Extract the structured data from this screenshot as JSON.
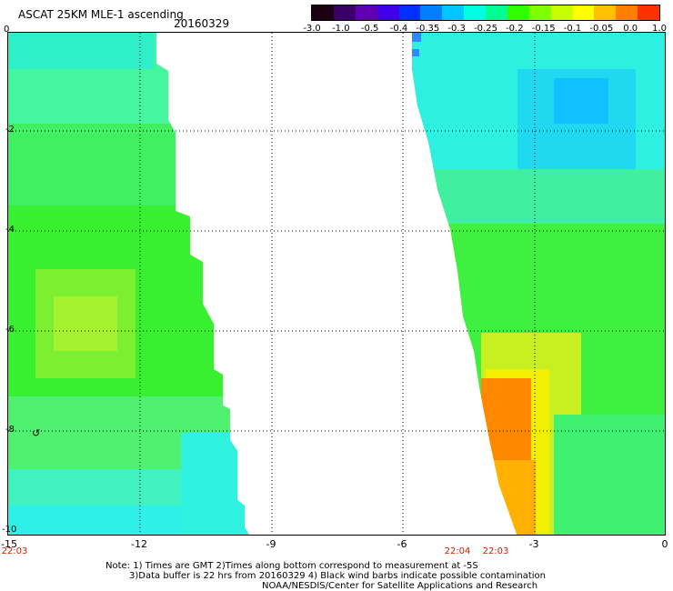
{
  "header": {
    "title": "ASCAT 25KM MLE-1 ascending",
    "date": "20160329"
  },
  "colorbar": {
    "labels": [
      "-3.0",
      "-1.0",
      "-0.5",
      "-0.4",
      "-0.35",
      "-0.3",
      "-0.25",
      "-0.2",
      "-0.15",
      "-0.1",
      "-0.05",
      "0.0",
      "1.0"
    ],
    "colors": [
      "#1a0010",
      "#3a0068",
      "#6000b0",
      "#4000e8",
      "#0030ff",
      "#0080ff",
      "#00c8ff",
      "#00ffe0",
      "#00ff90",
      "#30ff00",
      "#80ff00",
      "#c8ff00",
      "#ffff00",
      "#ffc000",
      "#ff8000",
      "#ff3000"
    ]
  },
  "axes": {
    "x_ticks": [
      "-15",
      "-12",
      "-9",
      "-6",
      "-3",
      "0"
    ],
    "y_ticks": [
      "0",
      "-2",
      "-4",
      "-6",
      "-8",
      "-10"
    ]
  },
  "times": {
    "left": "22:03",
    "mid": "22:04",
    "right": "22:03"
  },
  "notes": {
    "line1": "Note: 1) Times are GMT 2)Times along bottom correspond to measurement at -5S",
    "line2": "3)Data buffer is 22 hrs from 20160329 4) Black wind barbs indicate possible contamination",
    "credit": "NOAA/NESDIS/Center for Satellite Applications and Research"
  }
}
